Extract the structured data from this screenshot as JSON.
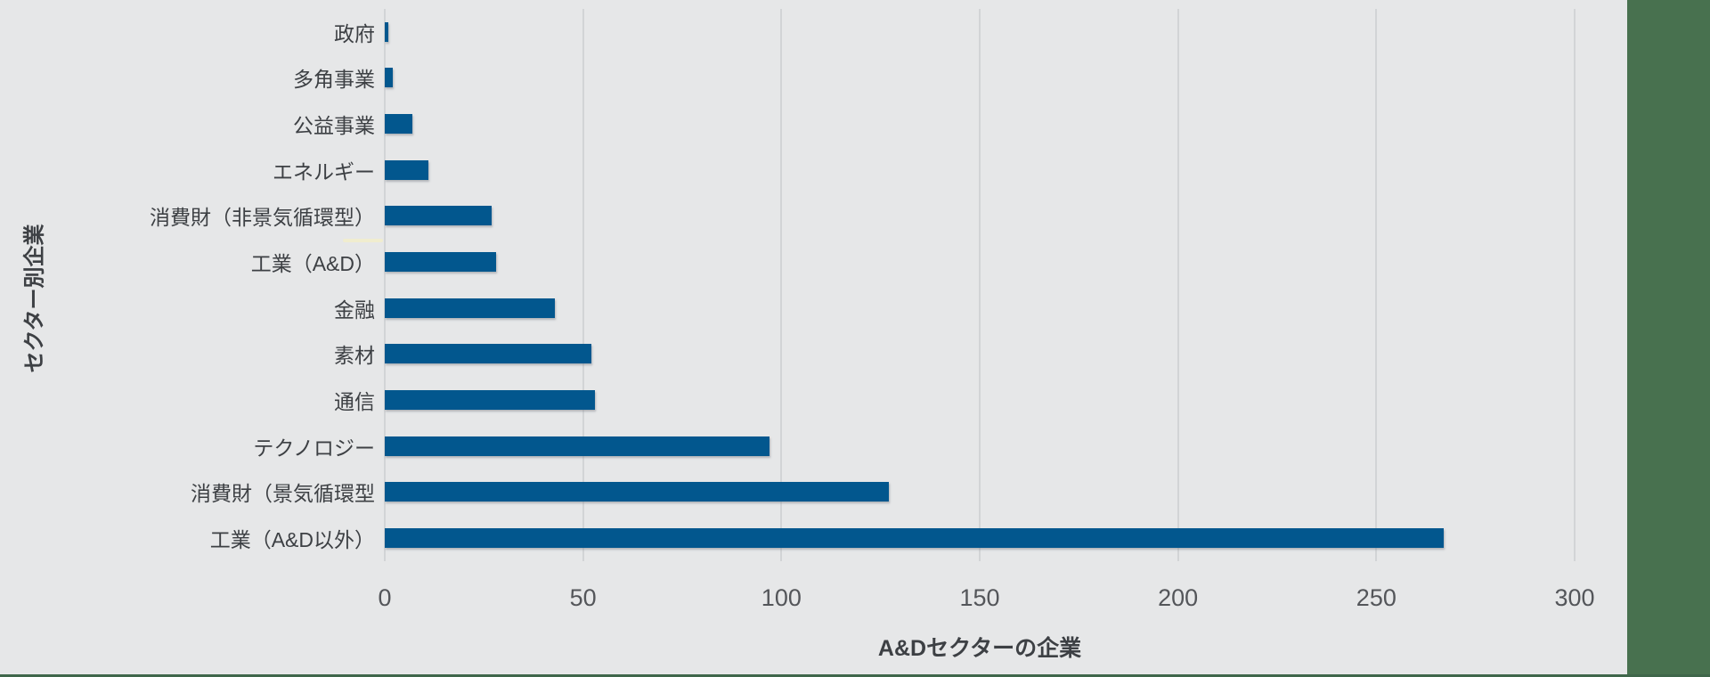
{
  "page": {
    "background_color": "#e6e7e8",
    "right_strip_color": "#48714f",
    "bottom_line_color": "#3f664a"
  },
  "chart_data": {
    "type": "bar",
    "orientation": "horizontal",
    "categories": [
      "政府",
      "多角事業",
      "公益事業",
      "エネルギー",
      "消費財（非景気循環型）",
      "工業（A&D）",
      "金融",
      "素材",
      "通信",
      "テクノロジー",
      "消費財（景気循環型",
      "工業（A&D以外）"
    ],
    "values": [
      1,
      2,
      7,
      11,
      27,
      28,
      43,
      52,
      53,
      97,
      127,
      267
    ],
    "xlabel": "A&Dセクターの企業",
    "ylabel": "セクター別企業",
    "xlim": [
      0,
      300
    ],
    "xticks": [
      0,
      50,
      100,
      150,
      200,
      250,
      300
    ],
    "grid": "vertical-gridlines-on",
    "legend": "none",
    "bar_color": "#02578e",
    "gridline_color": "#d2d4d6",
    "tick_label_color": "#54565a",
    "category_label_color": "#3d4044"
  }
}
